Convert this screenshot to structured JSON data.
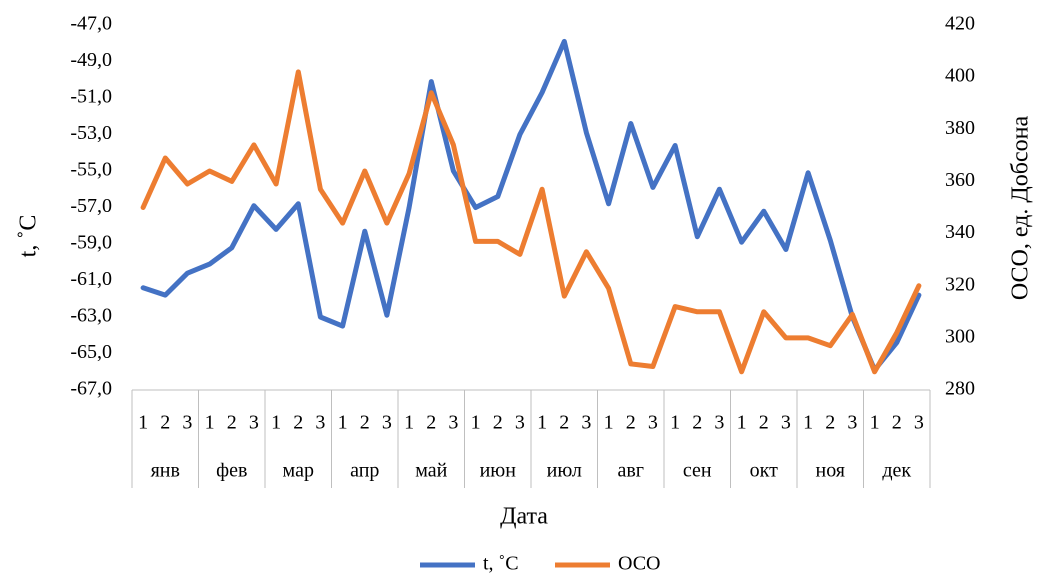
{
  "chart_data": {
    "type": "line",
    "y_label": "t, ˚C",
    "y2_label": "ОСО, ед. Добсона",
    "x_label": "Дата",
    "categories": [
      "1",
      "2",
      "3",
      "1",
      "2",
      "3",
      "1",
      "2",
      "3",
      "1",
      "2",
      "3",
      "1",
      "2",
      "3",
      "1",
      "2",
      "3",
      "1",
      "2",
      "3",
      "1",
      "2",
      "3",
      "1",
      "2",
      "3",
      "1",
      "2",
      "3",
      "1",
      "2",
      "3",
      "1",
      "2",
      "3"
    ],
    "groups": [
      "янв",
      "фев",
      "мар",
      "апр",
      "май",
      "июн",
      "июл",
      "авг",
      "сен",
      "окт",
      "ноя",
      "дек"
    ],
    "ylim": [
      -67,
      -47
    ],
    "yticks": [
      {
        "value": -47,
        "label": "-47,0"
      },
      {
        "value": -49,
        "label": "-49,0"
      },
      {
        "value": -51,
        "label": "-51,0"
      },
      {
        "value": -53,
        "label": "-53,0"
      },
      {
        "value": -55,
        "label": "-55,0"
      },
      {
        "value": -57,
        "label": "-57,0"
      },
      {
        "value": -59,
        "label": "-59,0"
      },
      {
        "value": -61,
        "label": "-61,0"
      },
      {
        "value": -63,
        "label": "-63,0"
      },
      {
        "value": -65,
        "label": "-65,0"
      },
      {
        "value": -67,
        "label": "-67,0"
      }
    ],
    "y2lim": [
      280,
      420
    ],
    "y2ticks": [
      280,
      300,
      320,
      340,
      360,
      380,
      400,
      420
    ],
    "legend": "bottom",
    "series": [
      {
        "name": "t, ˚C",
        "color": "#4472c4",
        "values": [
          -61.4,
          -61.8,
          -60.6,
          -60.1,
          -59.2,
          -56.9,
          -58.2,
          -56.8,
          -63.0,
          -63.5,
          -58.3,
          -62.9,
          -57.0,
          -50.1,
          -55.0,
          -57.0,
          -56.4,
          -53.0,
          -50.7,
          -47.9,
          -52.9,
          -56.8,
          -52.4,
          -55.9,
          -53.6,
          -58.6,
          -56.0,
          -58.9,
          -57.2,
          -59.3,
          -55.1,
          -58.8,
          -63.0,
          -65.9,
          -64.4,
          -61.8
        ]
      },
      {
        "name": "ОСО",
        "color": "#ed7d31",
        "axis": "y2",
        "values": [
          350,
          369,
          359,
          364,
          360,
          374,
          359,
          402,
          357,
          344,
          364,
          344,
          363,
          394,
          374,
          337,
          337,
          332,
          357,
          316,
          333,
          319,
          290,
          289,
          312,
          310,
          310,
          287,
          310,
          300,
          300,
          297,
          309,
          287,
          302,
          320
        ]
      }
    ]
  }
}
